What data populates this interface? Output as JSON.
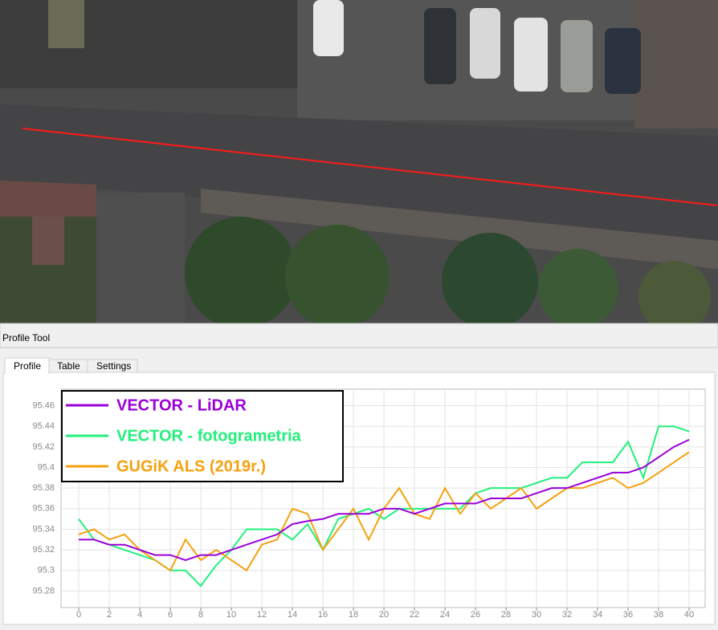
{
  "window": {
    "title": "Profile Tool",
    "tabs": [
      "Profile",
      "Table",
      "Settings"
    ]
  },
  "chart_data": {
    "type": "line",
    "x": [
      0,
      1,
      2,
      3,
      4,
      5,
      6,
      7,
      8,
      9,
      10,
      11,
      12,
      13,
      14,
      15,
      16,
      17,
      18,
      19,
      20,
      21,
      22,
      23,
      24,
      25,
      26,
      27,
      28,
      29,
      30,
      31,
      32,
      33,
      34,
      35,
      36,
      37,
      38,
      39,
      40
    ],
    "series": [
      {
        "name": "VECTOR - LiDAR",
        "color": "#9b00d9",
        "values": [
          95.33,
          95.33,
          95.325,
          95.325,
          95.32,
          95.315,
          95.315,
          95.31,
          95.315,
          95.315,
          95.32,
          95.325,
          95.33,
          95.335,
          95.345,
          95.348,
          95.35,
          95.355,
          95.355,
          95.355,
          95.36,
          95.36,
          95.355,
          95.36,
          95.365,
          95.365,
          95.365,
          95.37,
          95.37,
          95.37,
          95.375,
          95.38,
          95.38,
          95.385,
          95.39,
          95.395,
          95.395,
          95.4,
          95.41,
          95.42,
          95.427
        ]
      },
      {
        "name": "VECTOR - fotogrametria",
        "color": "#21f07a",
        "values": [
          95.35,
          95.33,
          95.325,
          95.32,
          95.315,
          95.31,
          95.3,
          95.3,
          95.285,
          95.305,
          95.32,
          95.34,
          95.34,
          95.34,
          95.33,
          95.345,
          95.32,
          95.35,
          95.355,
          95.36,
          95.35,
          95.36,
          95.36,
          95.36,
          95.36,
          95.36,
          95.375,
          95.38,
          95.38,
          95.38,
          95.385,
          95.39,
          95.39,
          95.405,
          95.405,
          95.405,
          95.425,
          95.39,
          95.44,
          95.44,
          95.435
        ]
      },
      {
        "name": "GUGiK ALS (2019r.)",
        "color": "#f5a10f",
        "values": [
          95.335,
          95.34,
          95.33,
          95.335,
          95.32,
          95.31,
          95.3,
          95.33,
          95.31,
          95.32,
          95.31,
          95.3,
          95.325,
          95.33,
          95.36,
          95.355,
          95.32,
          95.34,
          95.36,
          95.33,
          95.36,
          95.38,
          95.355,
          95.35,
          95.38,
          95.355,
          95.375,
          95.36,
          95.37,
          95.38,
          95.36,
          95.37,
          95.38,
          95.38,
          95.385,
          95.39,
          95.38,
          95.385,
          95.395,
          95.405,
          95.415
        ]
      }
    ],
    "xlim": [
      -1.16,
      41.05
    ],
    "ylim": [
      95.264,
      95.476
    ],
    "xticks": [
      0,
      2,
      4,
      6,
      8,
      10,
      12,
      14,
      16,
      18,
      20,
      22,
      24,
      26,
      28,
      30,
      32,
      34,
      36,
      38,
      40
    ],
    "yticks": [
      95.28,
      95.3,
      95.32,
      95.34,
      95.36,
      95.38,
      95.4,
      95.42,
      95.44,
      95.46
    ],
    "grid": true,
    "legend": "top-left"
  }
}
